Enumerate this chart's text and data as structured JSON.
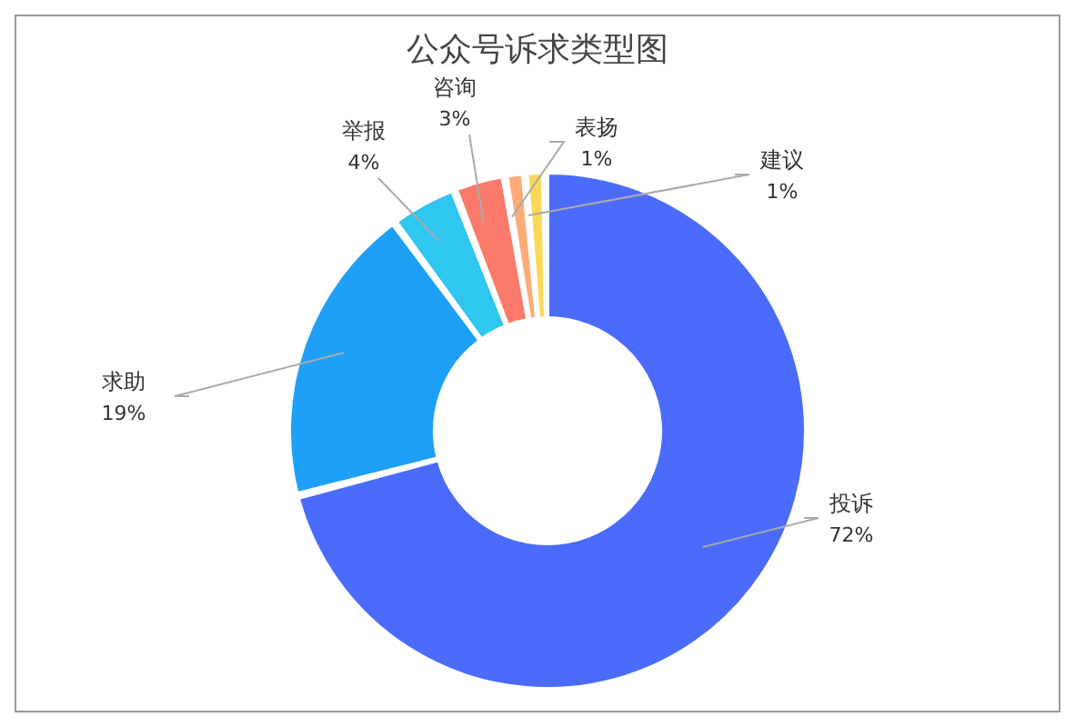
{
  "chart_data": {
    "type": "donut",
    "title": "公众号诉求类型图",
    "categories": [
      "投诉",
      "求助",
      "举报",
      "咨询",
      "表扬",
      "建议"
    ],
    "values": [
      72,
      19,
      4,
      3,
      1,
      1
    ],
    "value_labels": [
      "72%",
      "19%",
      "4%",
      "3%",
      "1%",
      "1%"
    ],
    "colors": [
      "#4b6bfb",
      "#1fa0f7",
      "#2fc6ef",
      "#fb7a6b",
      "#fdab78",
      "#f9d957"
    ],
    "legend": false
  }
}
